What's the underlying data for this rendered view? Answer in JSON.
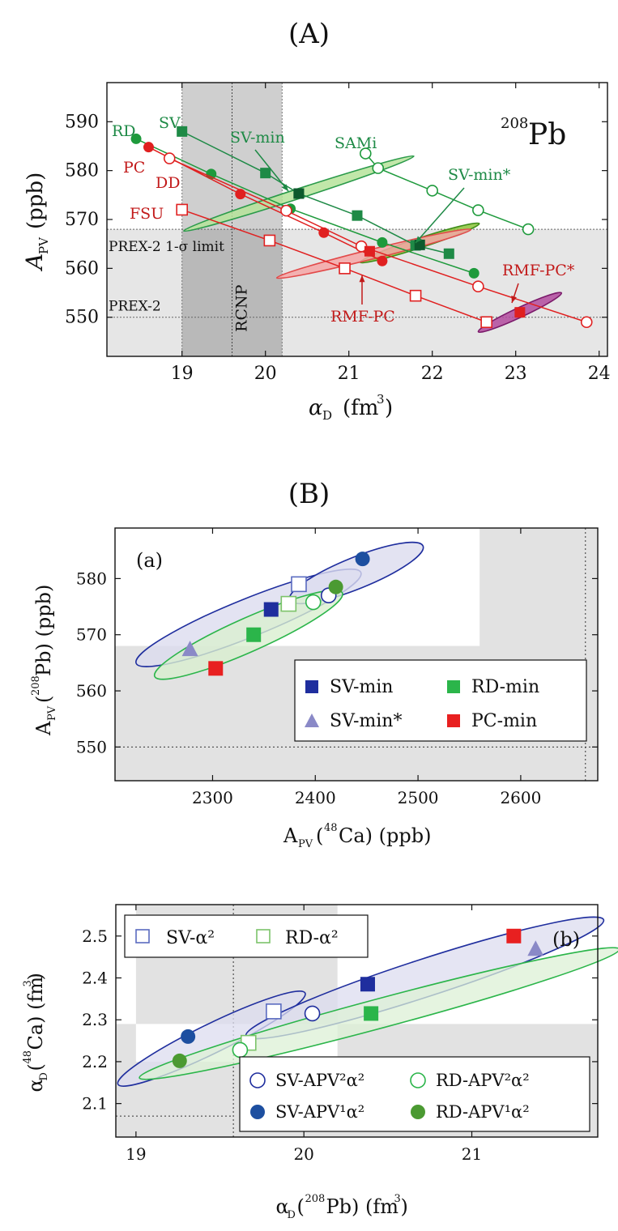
{
  "figure": {
    "panelA_title": "(A)",
    "panelB_title": "(B)"
  },
  "chart_data": [
    {
      "type": "line",
      "panel": "A",
      "annotation_nucleus": "208Pb",
      "xlabel": "α_D (fm³)",
      "ylabel": "A_PV (ppb)",
      "xlim": [
        18.1,
        24.1
      ],
      "ylim": [
        542,
        598
      ],
      "xticks": [
        19,
        20,
        21,
        22,
        23,
        24
      ],
      "yticks": [
        550,
        560,
        570,
        580,
        590
      ],
      "bands": [
        {
          "name": "PREX-2 1-σ limit",
          "y_max": 568,
          "label": "PREX-2 1-σ limit"
        },
        {
          "name": "PREX-2",
          "y": 550,
          "label": "PREX-2"
        },
        {
          "name": "RCNP",
          "x_min": 19.0,
          "x_max": 20.2,
          "x_center": 19.6,
          "label": "RCNP"
        }
      ],
      "series": [
        {
          "name": "SV",
          "color": "#1e8a46",
          "marker": "square-filled",
          "x": [
            19.0,
            20.0,
            20.4,
            21.1,
            21.8,
            22.2
          ],
          "y": [
            588,
            579.5,
            575.3,
            570.8,
            564.7,
            563
          ]
        },
        {
          "name": "RD",
          "color": "#1e9a3c",
          "marker": "circle-filled",
          "x": [
            18.45,
            19.35,
            20.3,
            21.4,
            22.5
          ],
          "y": [
            586.5,
            579.3,
            572.2,
            565.3,
            559
          ]
        },
        {
          "name": "PC",
          "color": "#e02020",
          "marker": "circle-filled",
          "x": [
            18.6,
            19.7,
            20.7,
            21.4
          ],
          "y": [
            584.8,
            575.2,
            567.3,
            561.5
          ]
        },
        {
          "name": "DD",
          "color": "#e02020",
          "marker": "circle-open",
          "x": [
            18.85,
            20.25,
            21.15,
            22.55,
            23.85
          ],
          "y": [
            582.5,
            571.8,
            564.5,
            556.3,
            549
          ]
        },
        {
          "name": "FSU",
          "color": "#e02020",
          "marker": "square-open",
          "x": [
            19.0,
            20.05,
            20.95,
            21.8,
            22.65
          ],
          "y": [
            572,
            565.7,
            560,
            554.4,
            549
          ]
        },
        {
          "name": "SAMi",
          "color": "#1e9a3c",
          "marker": "circle-open",
          "x": [
            21.2,
            21.35,
            22.0,
            22.55,
            23.15
          ],
          "y": [
            583.5,
            580.5,
            575.9,
            571.9,
            568
          ]
        },
        {
          "name": "RMF-PC",
          "color": "#e02020",
          "marker": "square-filled",
          "x": [
            21.25
          ],
          "y": [
            563.5
          ]
        },
        {
          "name": "RMF-PC*",
          "color": "#e02020",
          "marker": "square-filled",
          "x": [
            23.05
          ],
          "y": [
            551
          ]
        },
        {
          "name": "SV-min",
          "color": "#0d5a2d",
          "marker": "square-filled",
          "x": [
            20.4
          ],
          "y": [
            575.3
          ]
        },
        {
          "name": "SV-min*",
          "color": "#0d5a2d",
          "marker": "square-filled",
          "x": [
            21.85
          ],
          "y": [
            564.8
          ]
        }
      ],
      "ellipses": [
        {
          "name": "SV-min",
          "color": "#b6e39a",
          "cx": 20.4,
          "cy": 575.3,
          "rx": 1.45,
          "ry": 0.8,
          "angle_deg": -18
        },
        {
          "name": "SV-min*",
          "color": "#8cc43a",
          "cx": 21.85,
          "cy": 565.2,
          "rx": 0.75,
          "ry": 0.5,
          "angle_deg": -18
        },
        {
          "name": "RMF-PC",
          "color": "#f4a6a6",
          "cx": 21.3,
          "cy": 563,
          "rx": 1.2,
          "ry": 0.4,
          "angle_deg": -14
        },
        {
          "name": "RMF-PC*",
          "color": "#b14a9e",
          "cx": 23.05,
          "cy": 551,
          "rx": 0.55,
          "ry": 0.25,
          "angle_deg": -25
        }
      ],
      "labels": {
        "RD": "RD",
        "SV": "SV",
        "PC": "PC",
        "DD": "DD",
        "FSU": "FSU",
        "SV-min": "SV-min",
        "SAMi": "SAMi",
        "SV-min*": "SV-min*",
        "RMF-PC": "RMF-PC",
        "RMF-PC*": "RMF-PC*"
      }
    },
    {
      "type": "scatter",
      "panel": "B(a)",
      "subpanel_label": "(a)",
      "xlabel": "A_PV(48Ca) (ppb)",
      "ylabel": "A_PV(208Pb) (ppb)",
      "xlim": [
        2205,
        2675
      ],
      "ylim": [
        544,
        589
      ],
      "xticks": [
        2300,
        2400,
        2500,
        2600
      ],
      "yticks": [
        550,
        560,
        570,
        580
      ],
      "shaded_region": {
        "x_max": 2560,
        "y_max": 568,
        "excluded_x": 2663,
        "excluded_y": 550
      },
      "series": [
        {
          "name": "SV-min",
          "color": "#1f2e9e",
          "marker": "square-filled",
          "x": [
            2357
          ],
          "y": [
            574.5
          ]
        },
        {
          "name": "RD-min",
          "color": "#2bb54a",
          "marker": "square-filled",
          "x": [
            2340
          ],
          "y": [
            570
          ]
        },
        {
          "name": "SV-min*",
          "color": "#8a89c7",
          "marker": "triangle-filled",
          "x": [
            2278
          ],
          "y": [
            567.5
          ]
        },
        {
          "name": "PC-min",
          "color": "#e82020",
          "marker": "square-filled",
          "x": [
            2303
          ],
          "y": [
            564
          ]
        },
        {
          "name": "SV-α² (open)",
          "color": "#5a6bc0",
          "marker": "square-open",
          "x": [
            2384
          ],
          "y": [
            579
          ]
        },
        {
          "name": "RD-α² (open)",
          "color": "#7cc36a",
          "marker": "square-open",
          "x": [
            2374
          ],
          "y": [
            575.5
          ]
        },
        {
          "name": "SV-APV²α²",
          "color": "#1f2e9e",
          "marker": "circle-open",
          "x": [
            2413
          ],
          "y": [
            577
          ]
        },
        {
          "name": "RD-APV²α²",
          "color": "#2bb54a",
          "marker": "circle-open",
          "x": [
            2398
          ],
          "y": [
            575.8
          ]
        },
        {
          "name": "SV-APV¹α²",
          "color": "#1d4fa0",
          "marker": "circle-filled",
          "x": [
            2446
          ],
          "y": [
            583.5
          ]
        },
        {
          "name": "RD-APV¹α²",
          "color": "#4b9a32",
          "marker": "circle-filled",
          "x": [
            2420
          ],
          "y": [
            578.5
          ]
        }
      ],
      "ellipses": [
        {
          "color": "#1f2e9e",
          "cx": 2335,
          "cy": 573,
          "rx": 118,
          "ry": 3.4,
          "angle_deg": -22
        },
        {
          "color": "#1f2e9e",
          "cx": 2440,
          "cy": 581,
          "rx": 70,
          "ry": 2.8,
          "angle_deg": -22
        },
        {
          "color": "#2bb54a",
          "cx": 2335,
          "cy": 570,
          "rx": 100,
          "ry": 3.0,
          "angle_deg": -24
        }
      ],
      "legend": {
        "placement": "center-right",
        "items": [
          "SV-min",
          "RD-min",
          "SV-min*",
          "PC-min"
        ]
      }
    },
    {
      "type": "scatter",
      "panel": "B(b)",
      "subpanel_label": "(b)",
      "xlabel": "α_D(208Pb) (fm³)",
      "ylabel": "α_D(48Ca) (fm³)",
      "xlim": [
        18.88,
        21.75
      ],
      "ylim": [
        2.02,
        2.575
      ],
      "xticks": [
        19,
        20,
        21
      ],
      "yticks": [
        2.1,
        2.2,
        2.3,
        2.4,
        2.5
      ],
      "shaded_region": {
        "x_min": 19.0,
        "x_max": 20.2,
        "y_min": 2.2,
        "y_max": 2.29
      },
      "excluded_lines": {
        "x": 19.58,
        "y": 2.07
      },
      "series": [
        {
          "name": "SV-α²",
          "color": "#5a6bc0",
          "marker": "square-open",
          "x": [
            19.82
          ],
          "y": [
            2.32
          ]
        },
        {
          "name": "RD-α²",
          "color": "#7cc36a",
          "marker": "square-open",
          "x": [
            19.67
          ],
          "y": [
            2.245
          ]
        },
        {
          "name": "SV-APV²α²",
          "color": "#1f2e9e",
          "marker": "circle-open",
          "x": [
            20.05
          ],
          "y": [
            2.315
          ]
        },
        {
          "name": "RD-APV²α²",
          "color": "#2bb54a",
          "marker": "circle-open",
          "x": [
            19.62
          ],
          "y": [
            2.228
          ]
        },
        {
          "name": "SV-APV¹α²",
          "color": "#1d4fa0",
          "marker": "circle-filled",
          "x": [
            19.31
          ],
          "y": [
            2.26
          ]
        },
        {
          "name": "RD-APV¹α²",
          "color": "#4b9a32",
          "marker": "circle-filled",
          "x": [
            19.26
          ],
          "y": [
            2.202
          ]
        },
        {
          "name": "SV-min (filled)",
          "color": "#1f2e9e",
          "marker": "square-filled",
          "x": [
            20.38
          ],
          "y": [
            2.385
          ]
        },
        {
          "name": "RD-min (filled)",
          "color": "#2bb54a",
          "marker": "square-filled",
          "x": [
            20.4
          ],
          "y": [
            2.315
          ]
        },
        {
          "name": "PC-min (filled)",
          "color": "#e82020",
          "marker": "square-filled",
          "x": [
            21.25
          ],
          "y": [
            2.5
          ]
        },
        {
          "name": "SV-min* (triangle)",
          "color": "#8a89c7",
          "marker": "triangle-filled",
          "x": [
            21.38
          ],
          "y": [
            2.47
          ]
        }
      ],
      "ellipses": [
        {
          "color": "#1f2e9e",
          "cx": 19.45,
          "cy": 2.255,
          "rx": 0.62,
          "ry": 0.035,
          "angle_deg": -26
        },
        {
          "color": "#1f2e9e",
          "cx": 20.72,
          "cy": 2.4,
          "rx": 1.12,
          "ry": 0.045,
          "angle_deg": -18
        },
        {
          "color": "#2bb54a",
          "cx": 20.45,
          "cy": 2.315,
          "rx": 1.48,
          "ry": 0.035,
          "angle_deg": -15
        }
      ],
      "legend_top": {
        "items": [
          "SV-α²",
          "RD-α²"
        ]
      },
      "legend_bottom": {
        "items": [
          "SV-APV²α²",
          "RD-APV²α²",
          "SV-APV¹α²",
          "RD-APV¹α²"
        ]
      }
    }
  ]
}
